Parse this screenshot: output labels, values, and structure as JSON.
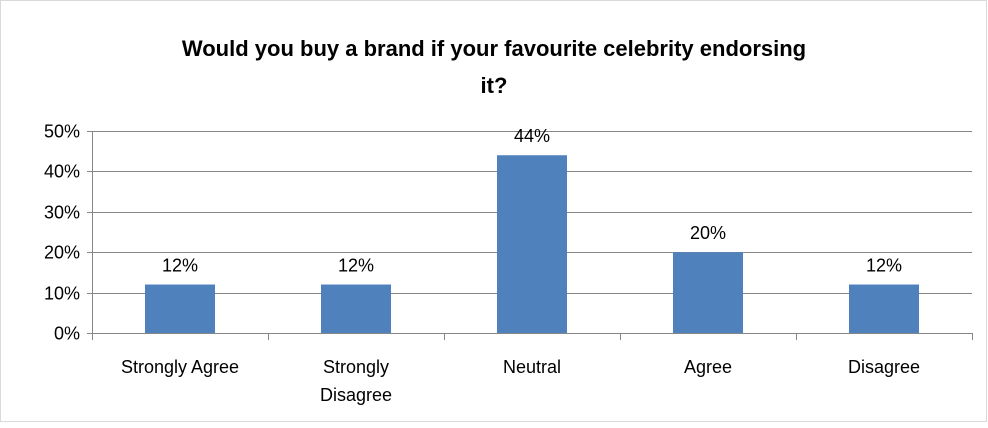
{
  "chart_data": {
    "type": "bar",
    "title_lines": [
      "Would you buy a brand if your favourite celebrity endorsing",
      "it?"
    ],
    "categories": [
      [
        "Strongly Agree"
      ],
      [
        "Strongly",
        "Disagree"
      ],
      [
        "Neutral"
      ],
      [
        "Agree"
      ],
      [
        "Disagree"
      ]
    ],
    "values": [
      12,
      12,
      44,
      20,
      12
    ],
    "data_labels": [
      "12%",
      "12%",
      "44%",
      "20%",
      "12%"
    ],
    "y_ticks": [
      0,
      10,
      20,
      30,
      40,
      50
    ],
    "y_tick_labels": [
      "0%",
      "10%",
      "20%",
      "30%",
      "40%",
      "50%"
    ],
    "ylim": [
      0,
      50
    ],
    "grid": true,
    "legend": "none",
    "colors": {
      "bar": "#4F81BD",
      "grid": "#868686",
      "axis": "#868686",
      "frame": "#D9D9D9"
    }
  }
}
